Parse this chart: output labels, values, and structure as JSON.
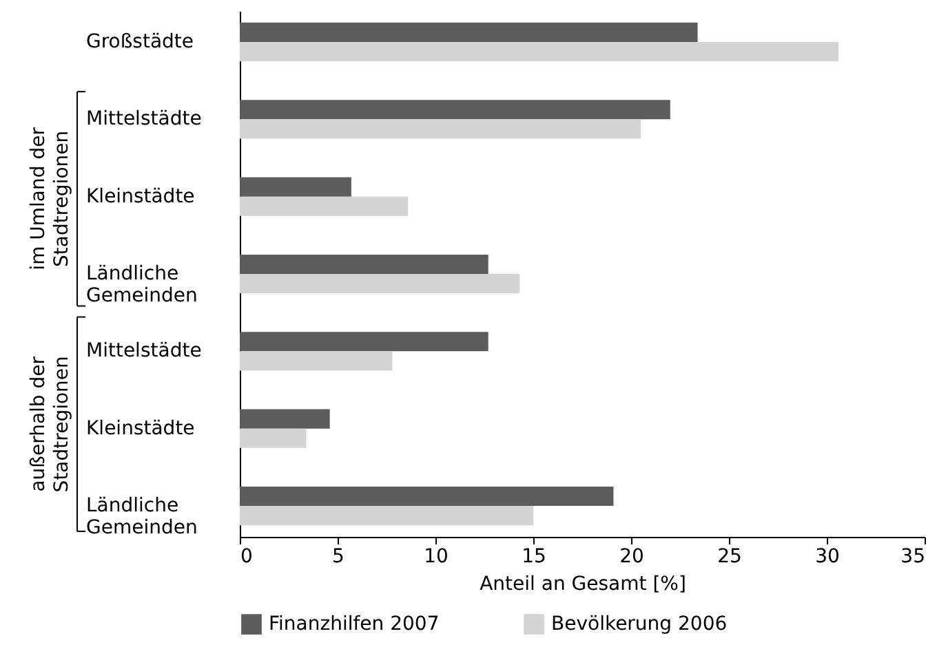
{
  "chart_data": {
    "type": "bar",
    "orientation": "horizontal",
    "categories": [
      "Großstädte",
      "Mittelstädte",
      "Kleinstädte",
      "Ländliche Gemeinden",
      "Mittelstädte",
      "Kleinstädte",
      "Ländliche Gemeinden"
    ],
    "series": [
      {
        "name": "Finanzhilfen 2007",
        "color": "#5c5c5c",
        "values": [
          23.4,
          22.0,
          5.7,
          12.7,
          12.7,
          4.6,
          19.1
        ]
      },
      {
        "name": "Bevölkerung 2006",
        "color": "#d4d4d4",
        "values": [
          30.6,
          20.5,
          8.6,
          14.3,
          7.8,
          3.4,
          15.0
        ]
      }
    ],
    "xlabel": "Anteil an Gesamt [%]",
    "xlim": [
      0,
      35
    ],
    "xticks": [
      0,
      5,
      10,
      15,
      20,
      25,
      30,
      35
    ],
    "annotations": [
      "im Umland der Stadtregionen",
      "außerhalb der Stadtregionen"
    ],
    "grid": false,
    "legend": "bottom"
  }
}
